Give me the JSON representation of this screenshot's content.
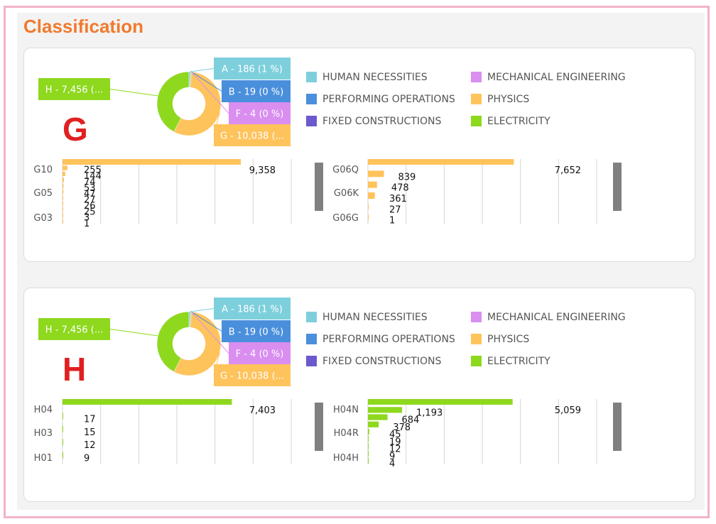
{
  "page": {
    "title": "Classification"
  },
  "colors": {
    "A": "#7ecfdc",
    "B": "#4a8fdc",
    "E": "#6a5acd",
    "F": "#d98ef0",
    "G": "#ffc35c",
    "H": "#8ed81e",
    "scrollbar": "#808080",
    "grid": "#d6d6d6"
  },
  "chart_data": [
    {
      "type": "pie",
      "letter": "G",
      "slices": [
        {
          "code": "A",
          "value": 186,
          "label": "A - 186 (1 %)"
        },
        {
          "code": "B",
          "value": 19,
          "label": "B - 19 (0 %)"
        },
        {
          "code": "F",
          "value": 4,
          "label": "F - 4 (0 %)"
        },
        {
          "code": "G",
          "value": 10038,
          "label": "G - 10,038 (..."
        },
        {
          "code": "H",
          "value": 7456,
          "label": "H - 7,456 (..."
        }
      ],
      "legend": [
        {
          "code": "A",
          "label": "HUMAN NECESSITIES"
        },
        {
          "code": "B",
          "label": "PERFORMING OPERATIONS"
        },
        {
          "code": "E",
          "label": "FIXED CONSTRUCTIONS"
        },
        {
          "code": "F",
          "label": "MECHANICAL ENGINEERING"
        },
        {
          "code": "G",
          "label": "PHYSICS"
        },
        {
          "code": "H",
          "label": "ELECTRICITY"
        }
      ],
      "color_code": "G",
      "bars_left": {
        "type": "bar",
        "orientation": "horizontal",
        "tick_labels": [
          "G10",
          "G05",
          "G03"
        ],
        "values": [
          9358,
          255,
          144,
          74,
          53,
          47,
          27,
          26,
          25,
          3,
          1
        ],
        "value_labels": [
          "9,358",
          "255",
          "144",
          "74",
          "53",
          "47",
          "27",
          "26",
          "25",
          "3",
          "1"
        ],
        "xlim": [
          0,
          12000
        ]
      },
      "bars_right": {
        "type": "bar",
        "orientation": "horizontal",
        "tick_labels": [
          "G06Q",
          "G06K",
          "G06G"
        ],
        "values": [
          7652,
          839,
          478,
          361,
          27,
          1
        ],
        "value_labels": [
          "7,652",
          "839",
          "478",
          "361",
          "27",
          "1"
        ],
        "xlim": [
          0,
          12000
        ]
      }
    },
    {
      "type": "pie",
      "letter": "H",
      "slices": [
        {
          "code": "A",
          "value": 186,
          "label": "A - 186 (1 %)"
        },
        {
          "code": "B",
          "value": 19,
          "label": "B - 19 (0 %)"
        },
        {
          "code": "F",
          "value": 4,
          "label": "F - 4 (0 %)"
        },
        {
          "code": "G",
          "value": 10038,
          "label": "G - 10,038 (..."
        },
        {
          "code": "H",
          "value": 7456,
          "label": "H - 7,456 (..."
        }
      ],
      "legend": [
        {
          "code": "A",
          "label": "HUMAN NECESSITIES"
        },
        {
          "code": "B",
          "label": "PERFORMING OPERATIONS"
        },
        {
          "code": "E",
          "label": "FIXED CONSTRUCTIONS"
        },
        {
          "code": "F",
          "label": "MECHANICAL ENGINEERING"
        },
        {
          "code": "G",
          "label": "PHYSICS"
        },
        {
          "code": "H",
          "label": "ELECTRICITY"
        }
      ],
      "color_code": "H",
      "bars_left": {
        "type": "bar",
        "orientation": "horizontal",
        "tick_labels": [
          "H04",
          "H03",
          "H01"
        ],
        "values": [
          7403,
          17,
          15,
          12,
          9
        ],
        "value_labels": [
          "7,403",
          "17",
          "15",
          "12",
          "9"
        ],
        "xlim": [
          0,
          10000
        ]
      },
      "bars_right": {
        "type": "bar",
        "orientation": "horizontal",
        "tick_labels": [
          "H04N",
          "H04R",
          "H04H"
        ],
        "values": [
          5059,
          1193,
          684,
          378,
          45,
          19,
          12,
          9,
          4
        ],
        "value_labels": [
          "5,059",
          "1,193",
          "684",
          "378",
          "45",
          "19",
          "12",
          "9",
          "4"
        ],
        "xlim": [
          0,
          8000
        ]
      }
    }
  ]
}
